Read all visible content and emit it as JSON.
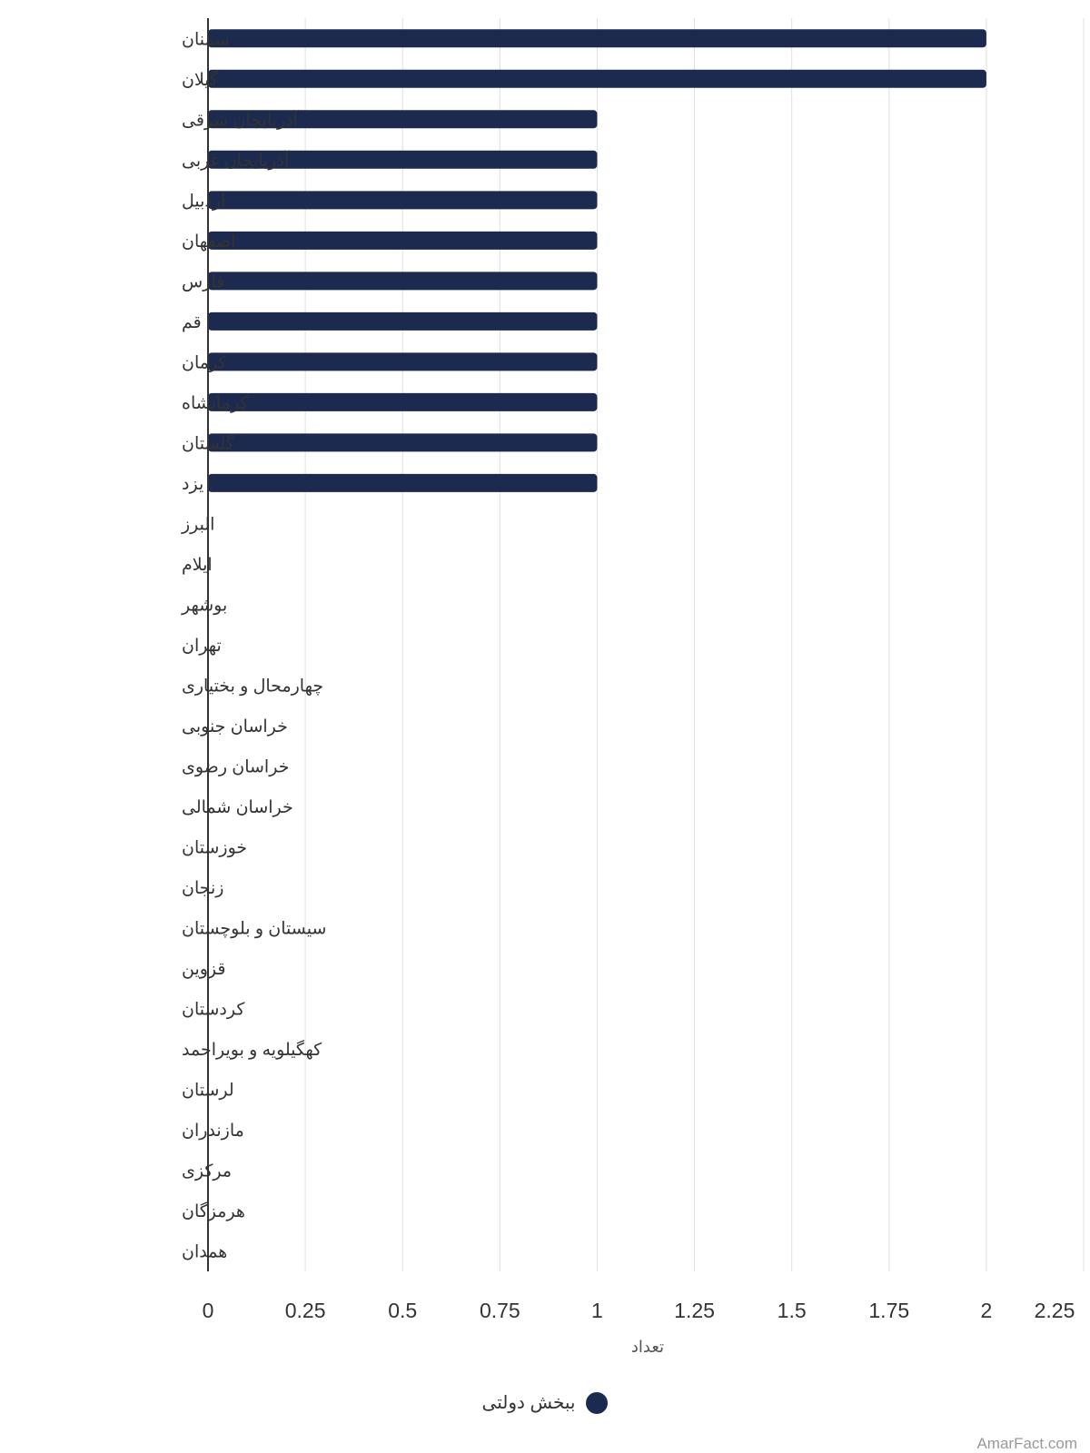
{
  "chart_data": {
    "type": "bar",
    "orientation": "horizontal",
    "categories": [
      "سمنان",
      "گیلان",
      "آذربایجان شرقی",
      "آذربایجان غربی",
      "اردبیل",
      "اصفهان",
      "فارس",
      "قم",
      "کرمان",
      "کرمانشاه",
      "گلستان",
      "یزد",
      "البرز",
      "ایلام",
      "بوشهر",
      "تهران",
      "چهارمحال و بختیاری",
      "خراسان جنوبی",
      "خراسان رضوی",
      "خراسان شمالی",
      "خوزستان",
      "زنجان",
      "سیستان و بلوچستان",
      "قزوین",
      "کردستان",
      "کهگیلویه و بویراحمد",
      "لرستان",
      "مازندران",
      "مرکزی",
      "هرمزگان",
      "همدان"
    ],
    "series": [
      {
        "name": "ببخش دولتی",
        "color": "#1b2a4e",
        "values": [
          2,
          2,
          1,
          1,
          1,
          1,
          1,
          1,
          1,
          1,
          1,
          1,
          0,
          0,
          0,
          0,
          0,
          0,
          0,
          0,
          0,
          0,
          0,
          0,
          0,
          0,
          0,
          0,
          0,
          0,
          0
        ]
      }
    ],
    "xlabel": "تعداد",
    "xticks": [
      "0",
      "0.25",
      "0.5",
      "0.75",
      "1",
      "1.25",
      "1.5",
      "1.75",
      "2",
      "2.25"
    ],
    "xlim": [
      0,
      2.25
    ],
    "grid": true,
    "legend_position": "bottom"
  },
  "credit": "AmarFact.com"
}
